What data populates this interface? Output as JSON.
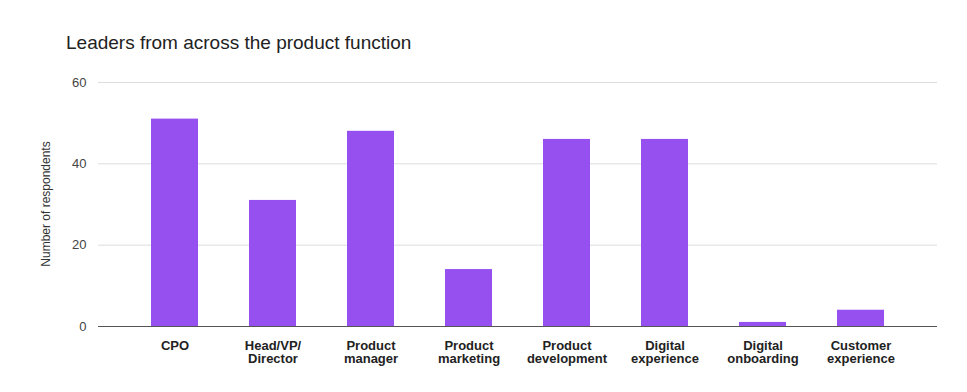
{
  "chart_data": {
    "type": "bar",
    "title": "Leaders from across the product function",
    "y_label": "Number of respondents",
    "categories": [
      "CPO",
      "Head/VP/\nDirector",
      "Product\nmanager",
      "Product\nmarketing",
      "Product\ndevelopment",
      "Digital\nexperience",
      "Digital\nonboarding",
      "Customer\nexperience"
    ],
    "values": [
      51,
      31,
      48,
      14,
      46,
      46,
      1,
      4
    ],
    "color": "#9650ef",
    "ylim": [
      0,
      60
    ],
    "yticks": [
      0,
      20,
      40,
      60
    ],
    "grid": true
  }
}
